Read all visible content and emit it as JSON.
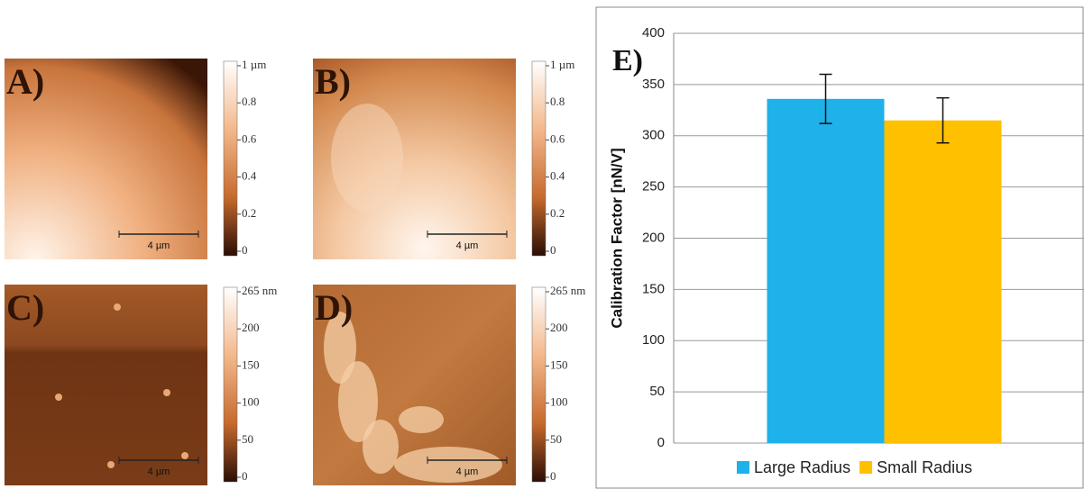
{
  "panels": [
    {
      "label": "A)",
      "colorbar_labels": [
        "1 µm",
        "0.8",
        "0.6",
        "0.4",
        "0.2",
        "0"
      ],
      "scale_bar": "4 µm"
    },
    {
      "label": "B)",
      "colorbar_labels": [
        "1 µm",
        "0.8",
        "0.6",
        "0.4",
        "0.2",
        "0"
      ],
      "scale_bar": "4 µm"
    },
    {
      "label": "C)",
      "colorbar_labels": [
        "265 nm",
        "200",
        "150",
        "100",
        "50",
        "0"
      ],
      "scale_bar": "4 µm"
    },
    {
      "label": "D)",
      "colorbar_labels": [
        "265 nm",
        "200",
        "150",
        "100",
        "50",
        "0"
      ],
      "scale_bar": "4 µm"
    }
  ],
  "chart_data": {
    "type": "bar",
    "panel_label": "E)",
    "y_label": "Calibration Factor [nN/V]",
    "categories": [
      null
    ],
    "series": [
      {
        "name": "Large Radius",
        "color": "#1fb1ea",
        "values": [
          336
        ],
        "errors": [
          24
        ]
      },
      {
        "name": "Small Radius",
        "color": "#ffc000",
        "values": [
          315
        ],
        "errors": [
          22
        ]
      }
    ],
    "ylim": [
      0,
      400
    ],
    "yticks": [
      0,
      50,
      100,
      150,
      200,
      250,
      300,
      350,
      400
    ],
    "grid": true,
    "legend": "bottom"
  }
}
